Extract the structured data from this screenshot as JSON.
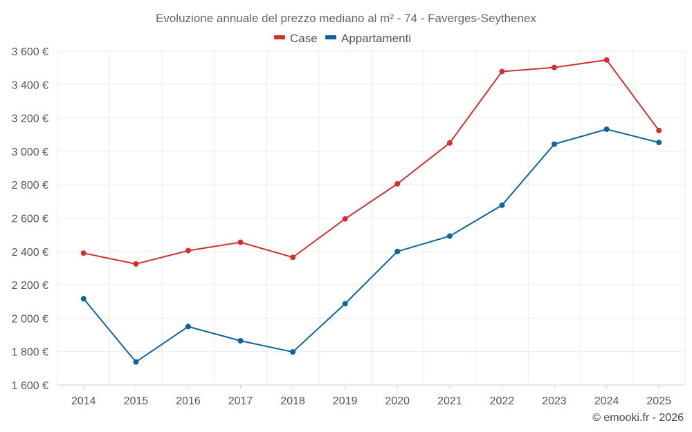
{
  "chart_data": {
    "type": "line",
    "title": "Evoluzione annuale del prezzo mediano al m² - 74 - Faverges-Seythenex",
    "categories": [
      "2014",
      "2015",
      "2016",
      "2017",
      "2018",
      "2019",
      "2020",
      "2021",
      "2022",
      "2023",
      "2024",
      "2025"
    ],
    "series": [
      {
        "name": "Case",
        "color": "#d32f2f",
        "values": [
          2390,
          2325,
          2405,
          2455,
          2365,
          2595,
          2805,
          3050,
          3478,
          3502,
          3547,
          3125
        ]
      },
      {
        "name": "Appartamenti",
        "color": "#0b64a0",
        "values": [
          2117,
          1738,
          1950,
          1865,
          1798,
          2087,
          2400,
          2492,
          2677,
          3043,
          3132,
          3053
        ]
      }
    ],
    "ylim": [
      1600,
      3600
    ],
    "yticks": [
      1600,
      1800,
      2000,
      2200,
      2400,
      2600,
      2800,
      3000,
      3200,
      3400,
      3600
    ],
    "ytick_labels": [
      "1 600 €",
      "1 800 €",
      "2 000 €",
      "2 200 €",
      "2 400 €",
      "2 600 €",
      "2 800 €",
      "3 000 €",
      "3 200 €",
      "3 400 €",
      "3 600 €"
    ],
    "xlabel": "",
    "ylabel": "",
    "grid": true,
    "legend_position": "top-center"
  },
  "credit": "© emooki.fr - 2026"
}
